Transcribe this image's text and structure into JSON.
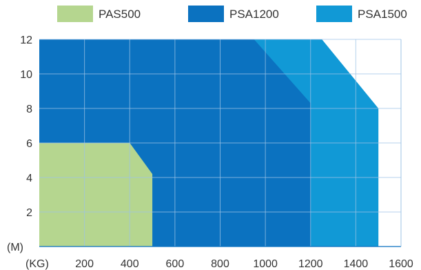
{
  "chart_data": {
    "type": "area",
    "x_unit": "(KG)",
    "y_unit": "(M)",
    "xlim": [
      0,
      1600
    ],
    "ylim": [
      0,
      12
    ],
    "x_ticks": [
      200,
      400,
      600,
      800,
      1000,
      1200,
      1400,
      1600
    ],
    "y_ticks": [
      2,
      4,
      6,
      8,
      10,
      12
    ],
    "grid": true,
    "legend_position": "top",
    "series": [
      {
        "name": "PSA1500",
        "color": "#1199d6",
        "x": [
          0,
          950,
          1250,
          1500,
          1500,
          0
        ],
        "y": [
          12,
          12,
          12,
          8,
          0,
          0
        ]
      },
      {
        "name": "PSA1200",
        "color": "#0b72c0",
        "x": [
          0,
          950,
          1200,
          1200,
          0
        ],
        "y": [
          12,
          12,
          8.3,
          0,
          0
        ]
      },
      {
        "name": "PAS500",
        "color": "#b5d68f",
        "x": [
          0,
          400,
          500,
          500,
          0
        ],
        "y": [
          6,
          6,
          4.2,
          0,
          0
        ]
      }
    ],
    "legend": [
      "PAS500",
      "PSA1200",
      "PSA1500"
    ]
  }
}
